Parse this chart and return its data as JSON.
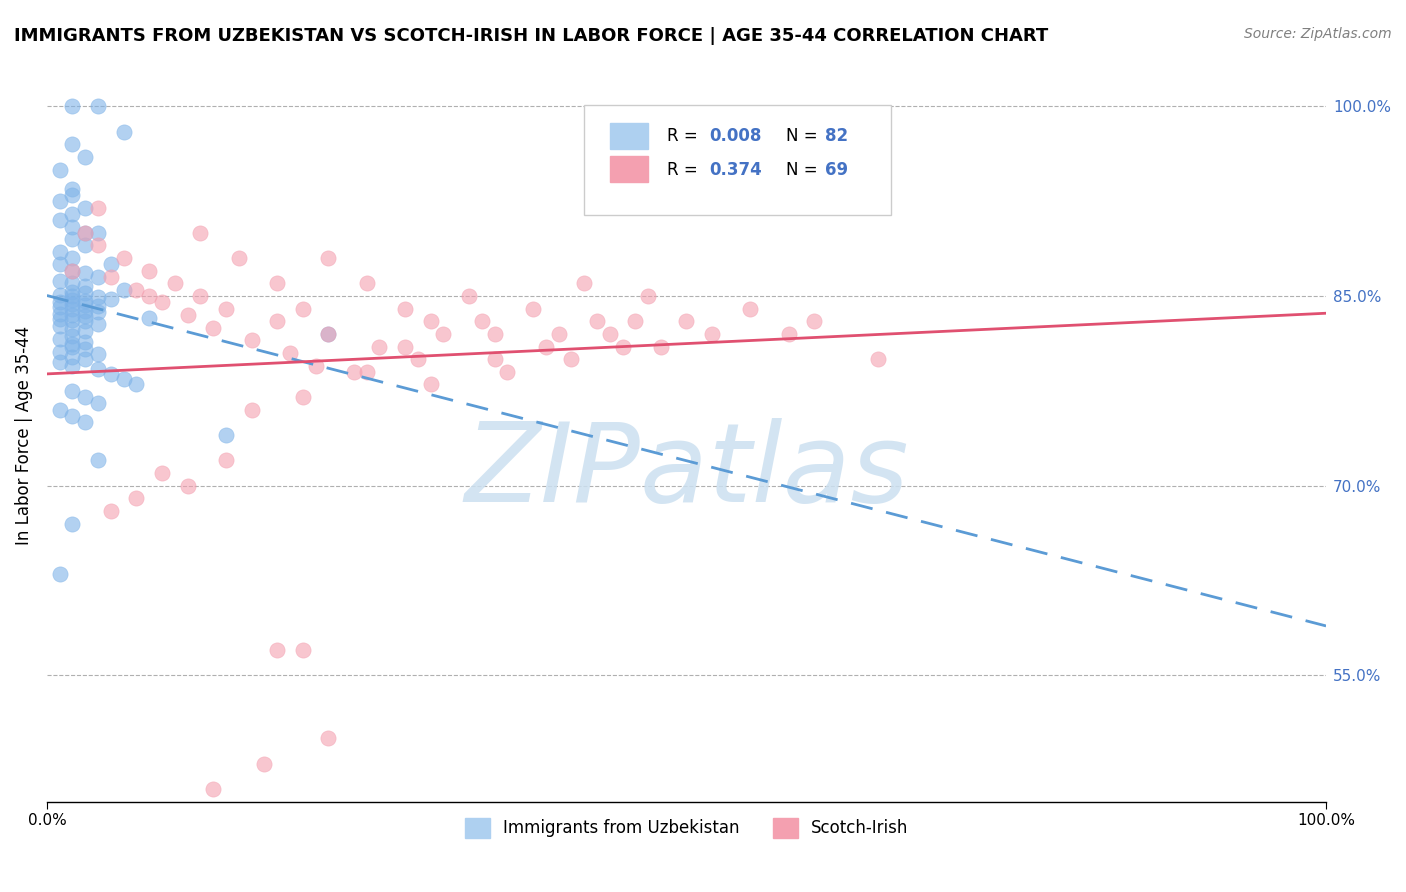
{
  "title": "IMMIGRANTS FROM UZBEKISTAN VS SCOTCH-IRISH IN LABOR FORCE | AGE 35-44 CORRELATION CHART",
  "source": "Source: ZipAtlas.com",
  "xlabel": "",
  "ylabel": "In Labor Force | Age 35-44",
  "xlim": [
    0.0,
    1.0
  ],
  "ylim": [
    0.45,
    1.03
  ],
  "ytick_labels_right": [
    "100.0%",
    "85.0%",
    "70.0%",
    "55.0%"
  ],
  "yticks_right": [
    1.0,
    0.85,
    0.7,
    0.55
  ],
  "legend_r1": "R = 0.008",
  "legend_n1": "N = 82",
  "legend_r2": "R = 0.374",
  "legend_n2": "N = 69",
  "blue_color": "#7fb3e8",
  "pink_color": "#f4a0b0",
  "trend_blue": "#5b9bd5",
  "trend_pink": "#e05070",
  "watermark_color": "#cce0f0",
  "blue_scatter_x": [
    0.02,
    0.04,
    0.06,
    0.02,
    0.03,
    0.01,
    0.02,
    0.02,
    0.01,
    0.03,
    0.02,
    0.01,
    0.02,
    0.03,
    0.04,
    0.02,
    0.03,
    0.01,
    0.02,
    0.05,
    0.01,
    0.02,
    0.03,
    0.04,
    0.01,
    0.02,
    0.03,
    0.06,
    0.02,
    0.03,
    0.01,
    0.02,
    0.04,
    0.05,
    0.02,
    0.03,
    0.01,
    0.02,
    0.03,
    0.04,
    0.01,
    0.02,
    0.03,
    0.04,
    0.01,
    0.02,
    0.03,
    0.08,
    0.01,
    0.02,
    0.03,
    0.04,
    0.01,
    0.02,
    0.03,
    0.22,
    0.02,
    0.01,
    0.03,
    0.02,
    0.02,
    0.03,
    0.01,
    0.04,
    0.02,
    0.03,
    0.01,
    0.02,
    0.04,
    0.05,
    0.06,
    0.07,
    0.02,
    0.03,
    0.04,
    0.01,
    0.02,
    0.03,
    0.14,
    0.04,
    0.02,
    0.01
  ],
  "blue_scatter_y": [
    1.0,
    1.0,
    0.98,
    0.97,
    0.96,
    0.95,
    0.935,
    0.93,
    0.925,
    0.92,
    0.915,
    0.91,
    0.905,
    0.9,
    0.9,
    0.895,
    0.89,
    0.885,
    0.88,
    0.875,
    0.875,
    0.87,
    0.868,
    0.865,
    0.862,
    0.86,
    0.858,
    0.855,
    0.853,
    0.852,
    0.851,
    0.85,
    0.849,
    0.848,
    0.847,
    0.846,
    0.845,
    0.844,
    0.843,
    0.842,
    0.841,
    0.84,
    0.838,
    0.837,
    0.836,
    0.835,
    0.834,
    0.833,
    0.832,
    0.831,
    0.83,
    0.828,
    0.826,
    0.824,
    0.822,
    0.82,
    0.818,
    0.816,
    0.814,
    0.812,
    0.81,
    0.808,
    0.806,
    0.804,
    0.802,
    0.8,
    0.798,
    0.795,
    0.792,
    0.788,
    0.784,
    0.78,
    0.775,
    0.77,
    0.765,
    0.76,
    0.755,
    0.75,
    0.74,
    0.72,
    0.67,
    0.63
  ],
  "pink_scatter_x": [
    0.02,
    0.04,
    0.08,
    0.12,
    0.15,
    0.18,
    0.2,
    0.22,
    0.25,
    0.28,
    0.3,
    0.33,
    0.35,
    0.38,
    0.4,
    0.42,
    0.43,
    0.45,
    0.47,
    0.5,
    0.52,
    0.55,
    0.58,
    0.6,
    0.35,
    0.28,
    0.22,
    0.18,
    0.14,
    0.12,
    0.1,
    0.08,
    0.06,
    0.04,
    0.03,
    0.05,
    0.07,
    0.09,
    0.11,
    0.13,
    0.16,
    0.19,
    0.21,
    0.24,
    0.26,
    0.29,
    0.31,
    0.34,
    0.36,
    0.39,
    0.41,
    0.44,
    0.46,
    0.48,
    0.65,
    0.3,
    0.25,
    0.2,
    0.16,
    0.2,
    0.18,
    0.14,
    0.11,
    0.09,
    0.07,
    0.05,
    0.22,
    0.17,
    0.13
  ],
  "pink_scatter_y": [
    0.87,
    0.92,
    0.85,
    0.9,
    0.88,
    0.86,
    0.84,
    0.88,
    0.86,
    0.84,
    0.83,
    0.85,
    0.82,
    0.84,
    0.82,
    0.86,
    0.83,
    0.81,
    0.85,
    0.83,
    0.82,
    0.84,
    0.82,
    0.83,
    0.8,
    0.81,
    0.82,
    0.83,
    0.84,
    0.85,
    0.86,
    0.87,
    0.88,
    0.89,
    0.9,
    0.865,
    0.855,
    0.845,
    0.835,
    0.825,
    0.815,
    0.805,
    0.795,
    0.79,
    0.81,
    0.8,
    0.82,
    0.83,
    0.79,
    0.81,
    0.8,
    0.82,
    0.83,
    0.81,
    0.8,
    0.78,
    0.79,
    0.77,
    0.76,
    0.57,
    0.57,
    0.72,
    0.7,
    0.71,
    0.69,
    0.68,
    0.5,
    0.48,
    0.46
  ]
}
